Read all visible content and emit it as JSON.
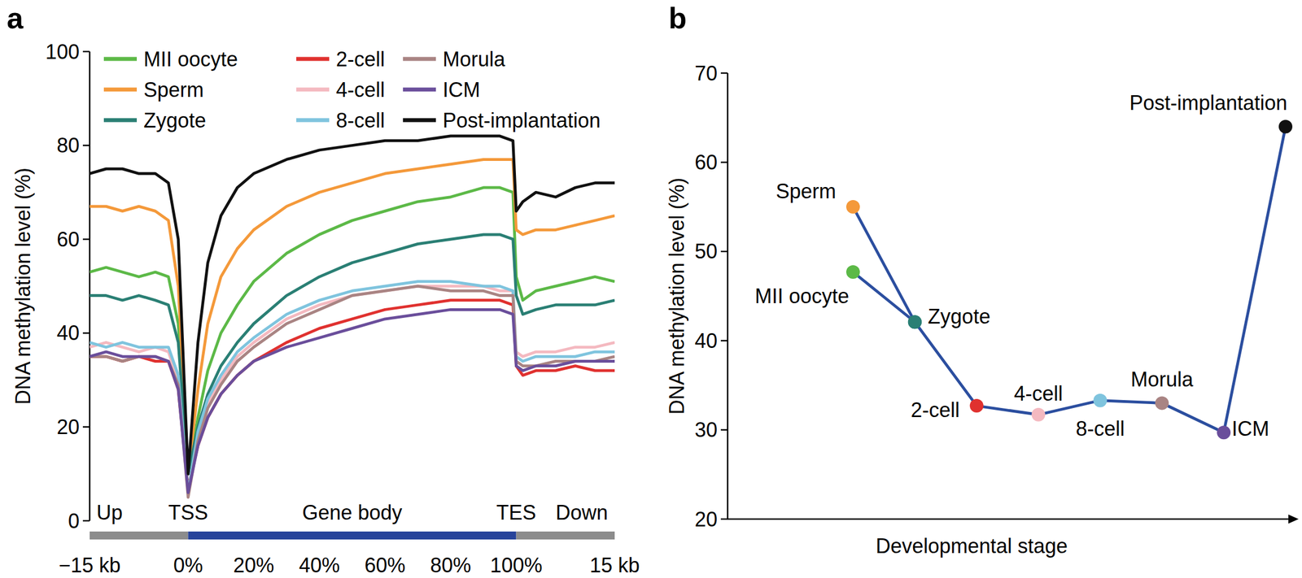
{
  "chart_data": [
    {
      "type": "line",
      "panel_label": "a",
      "ylabel": "DNA methylation level (%)",
      "x": [
        -30,
        -25,
        -20,
        -15,
        -10,
        -6,
        -3,
        0,
        3,
        6,
        10,
        15,
        20,
        30,
        40,
        50,
        60,
        70,
        80,
        90,
        95,
        99,
        100,
        102,
        106,
        112,
        118,
        124,
        130
      ],
      "xlim": [
        -30,
        130
      ],
      "xticks": [
        {
          "value": -30,
          "label": "−15 kb"
        },
        {
          "value": 0,
          "label": "0%"
        },
        {
          "value": 20,
          "label": "20%"
        },
        {
          "value": 40,
          "label": "40%"
        },
        {
          "value": 60,
          "label": "60%"
        },
        {
          "value": 80,
          "label": "80%"
        },
        {
          "value": 100,
          "label": "100%"
        },
        {
          "value": 130,
          "label": "15 kb"
        }
      ],
      "ylim": [
        0,
        100
      ],
      "yticks": [
        0,
        20,
        40,
        60,
        80,
        100
      ],
      "grid": false,
      "legend": "top",
      "regions": [
        {
          "label": "Up",
          "from": -30,
          "to": 0,
          "color": "#8c8c8c"
        },
        {
          "label": "Gene body",
          "from": 0,
          "to": 100,
          "color": "#27439a"
        },
        {
          "label": "Down",
          "from": 100,
          "to": 130,
          "color": "#8c8c8c"
        }
      ],
      "markers": [
        {
          "label": "TSS",
          "x": 0
        },
        {
          "label": "TES",
          "x": 100
        }
      ],
      "series": [
        {
          "name": "MII oocyte",
          "color": "#5cb947",
          "values": [
            53,
            54,
            53,
            52,
            53,
            52,
            42,
            10,
            22,
            32,
            40,
            46,
            51,
            57,
            61,
            64,
            66,
            68,
            69,
            71,
            71,
            70,
            52,
            47,
            49,
            50,
            51,
            52,
            51
          ]
        },
        {
          "name": "Sperm",
          "color": "#f4993a",
          "values": [
            67,
            67,
            66,
            67,
            66,
            64,
            50,
            10,
            28,
            42,
            52,
            58,
            62,
            67,
            70,
            72,
            74,
            75,
            76,
            77,
            77,
            77,
            62,
            61,
            62,
            62,
            63,
            64,
            65
          ]
        },
        {
          "name": "Zygote",
          "color": "#2a7f74",
          "values": [
            48,
            48,
            47,
            48,
            47,
            46,
            38,
            10,
            20,
            27,
            33,
            38,
            42,
            48,
            52,
            55,
            57,
            59,
            60,
            61,
            61,
            60,
            48,
            44,
            45,
            46,
            46,
            46,
            47
          ]
        },
        {
          "name": "2-cell",
          "color": "#e0312f",
          "values": [
            35,
            35,
            34,
            35,
            34,
            34,
            28,
            7,
            16,
            22,
            27,
            31,
            34,
            38,
            41,
            43,
            45,
            46,
            47,
            47,
            47,
            46,
            33,
            31,
            32,
            32,
            33,
            32,
            32
          ]
        },
        {
          "name": "4-cell",
          "color": "#f4b9c0",
          "values": [
            37,
            38,
            37,
            36,
            37,
            36,
            30,
            6,
            18,
            25,
            30,
            35,
            38,
            43,
            46,
            48,
            49,
            50,
            50,
            50,
            49,
            49,
            36,
            35,
            36,
            36,
            37,
            37,
            38
          ]
        },
        {
          "name": "8-cell",
          "color": "#7fc4de",
          "values": [
            38,
            37,
            38,
            37,
            37,
            37,
            31,
            6,
            19,
            26,
            31,
            36,
            39,
            44,
            47,
            49,
            50,
            51,
            51,
            50,
            50,
            49,
            35,
            34,
            35,
            35,
            35,
            36,
            36
          ]
        },
        {
          "name": "Morula",
          "color": "#a98483",
          "values": [
            35,
            35,
            34,
            35,
            35,
            34,
            29,
            5,
            17,
            24,
            29,
            34,
            37,
            42,
            45,
            48,
            49,
            50,
            49,
            49,
            48,
            48,
            34,
            33,
            33,
            34,
            34,
            34,
            35
          ]
        },
        {
          "name": "ICM",
          "color": "#6a4e9b",
          "values": [
            35,
            36,
            35,
            35,
            35,
            34,
            28,
            6,
            16,
            22,
            27,
            31,
            34,
            37,
            39,
            41,
            43,
            44,
            45,
            45,
            45,
            44,
            33,
            32,
            33,
            33,
            34,
            34,
            34
          ]
        },
        {
          "name": "Post-implantation",
          "color": "#111111",
          "values": [
            74,
            75,
            75,
            74,
            74,
            72,
            60,
            10,
            38,
            55,
            65,
            71,
            74,
            77,
            79,
            80,
            81,
            81,
            82,
            82,
            82,
            81,
            66,
            68,
            70,
            69,
            71,
            72,
            72
          ]
        }
      ]
    },
    {
      "type": "line",
      "panel_label": "b",
      "xlabel": "Developmental stage",
      "ylabel": "DNA methylation level (%)",
      "categories": [
        null,
        null,
        null,
        null,
        null,
        null,
        null,
        null
      ],
      "ylim": [
        20,
        70
      ],
      "yticks": [
        20,
        30,
        40,
        50,
        60,
        70
      ],
      "grid": false,
      "tick_labels": "y",
      "marker": "circle",
      "color": "#2b4e9f",
      "series": [
        {
          "values": [
            55.0,
            42.1,
            32.7,
            31.7,
            33.3,
            33.0,
            29.7,
            64.0
          ],
          "point_labels": [
            "Sperm",
            "Zygote",
            "2-cell",
            "4-cell",
            "8-cell",
            "Morula",
            "ICM",
            "Post-implantation"
          ],
          "colors": [
            "#f4993a",
            "#2a7f74",
            "#e0312f",
            "#f4b9c0",
            "#7fc4de",
            "#a98483",
            "#6a4e9b",
            "#111111"
          ]
        },
        {
          "values": [
            47.7,
            42.1,
            null,
            null,
            null,
            null,
            null,
            null
          ],
          "point_labels": [
            "MII oocyte",
            null,
            null,
            null,
            null,
            null,
            null,
            null
          ],
          "colors": [
            "#5cb947",
            "#2a7f74",
            null,
            null,
            null,
            null,
            null,
            null
          ]
        }
      ]
    }
  ]
}
